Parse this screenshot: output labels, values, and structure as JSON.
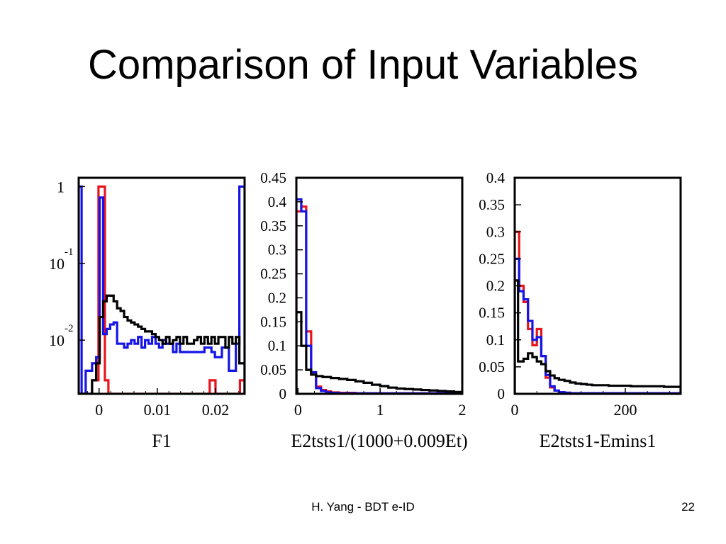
{
  "slide": {
    "title": "Comparison of Input Variables",
    "footer": "H. Yang - BDT e-ID",
    "page_number": "22"
  },
  "series_colors": [
    "#e8141c",
    "#1414e6",
    "#000000"
  ],
  "chart_data": [
    {
      "type": "histogram",
      "xlabel": "F1",
      "xlim": [
        -0.0035,
        0.025
      ],
      "xticks": [
        0,
        0.01,
        0.02
      ],
      "xtick_labels": [
        "0",
        "0.01",
        "0.02"
      ],
      "yscale": "log",
      "ylim": [
        0.002,
        1.3
      ],
      "yticks": [
        {
          "value": 1,
          "base": "1",
          "exp": ""
        },
        {
          "value": 0.1,
          "base": "10",
          "exp": "-1"
        },
        {
          "value": 0.01,
          "base": "10",
          "exp": "-2"
        }
      ],
      "series": [
        {
          "color": "#e8141c",
          "edges": [
            -0.0035,
            -0.0023,
            -0.0012,
            -0.0001,
            0.001,
            0.0016,
            0.0025,
            0.019,
            0.02,
            0.0242,
            0.025
          ],
          "values": [
            0.002,
            0.002,
            0.003,
            1.0,
            0.003,
            0.002,
            0.002,
            0.003,
            0.002,
            0.003
          ]
        },
        {
          "color": "#1414e6",
          "edges": [
            -0.0035,
            -0.003,
            -0.0023,
            -0.0017,
            -0.0012,
            -0.0005,
            0.0001,
            0.0007,
            0.0013,
            0.0019,
            0.0025,
            0.0031,
            0.0037,
            0.0043,
            0.0049,
            0.0055,
            0.0061,
            0.0067,
            0.0073,
            0.0079,
            0.0085,
            0.0091,
            0.0097,
            0.0103,
            0.0109,
            0.0115,
            0.0121,
            0.0127,
            0.0133,
            0.0139,
            0.0145,
            0.0151,
            0.0157,
            0.0163,
            0.0169,
            0.0175,
            0.0181,
            0.0187,
            0.0193,
            0.0199,
            0.0205,
            0.0211,
            0.0217,
            0.0223,
            0.0229,
            0.0235,
            0.0241,
            0.025
          ],
          "values": [
            1.0,
            0.002,
            0.004,
            0.004,
            0.005,
            0.006,
            0.72,
            0.012,
            0.014,
            0.016,
            0.017,
            0.009,
            0.009,
            0.008,
            0.009,
            0.01,
            0.009,
            0.011,
            0.008,
            0.01,
            0.009,
            0.011,
            0.009,
            0.008,
            0.01,
            0.009,
            0.009,
            0.007,
            0.009,
            0.007,
            0.007,
            0.007,
            0.007,
            0.007,
            0.007,
            0.007,
            0.008,
            0.008,
            0.007,
            0.006,
            0.006,
            0.008,
            0.008,
            0.004,
            0.004,
            0.009,
            1.0
          ]
        },
        {
          "color": "#000000",
          "edges": [
            -0.0035,
            -0.0023,
            -0.0012,
            -0.0005,
            0.0001,
            0.0007,
            0.0013,
            0.0019,
            0.0025,
            0.0031,
            0.0037,
            0.0043,
            0.0049,
            0.0055,
            0.0061,
            0.0067,
            0.0073,
            0.0079,
            0.0085,
            0.0091,
            0.0097,
            0.0103,
            0.0109,
            0.0115,
            0.0121,
            0.0127,
            0.0133,
            0.0139,
            0.0145,
            0.0151,
            0.0157,
            0.0163,
            0.0169,
            0.0175,
            0.0181,
            0.0187,
            0.0193,
            0.0199,
            0.0205,
            0.0211,
            0.0217,
            0.0223,
            0.0229,
            0.0235,
            0.0241,
            0.025
          ],
          "values": [
            0.002,
            0.002,
            0.003,
            0.005,
            0.02,
            0.032,
            0.038,
            0.038,
            0.032,
            0.026,
            0.024,
            0.02,
            0.018,
            0.017,
            0.016,
            0.015,
            0.014,
            0.013,
            0.013,
            0.012,
            0.011,
            0.01,
            0.009,
            0.011,
            0.009,
            0.01,
            0.011,
            0.009,
            0.011,
            0.009,
            0.009,
            0.01,
            0.011,
            0.009,
            0.011,
            0.009,
            0.011,
            0.009,
            0.011,
            0.011,
            0.008,
            0.011,
            0.009,
            0.011,
            0.005
          ]
        }
      ]
    },
    {
      "type": "histogram",
      "xlabel": "E2tsts1/(1000+0.009Et)",
      "xlim": [
        -0.02,
        2.0
      ],
      "xticks": [
        0,
        1,
        2
      ],
      "xtick_labels": [
        "0",
        "1",
        "2"
      ],
      "yscale": "linear",
      "ylim": [
        0,
        0.45
      ],
      "yticks": [
        0,
        0.05,
        0.1,
        0.15,
        0.2,
        0.25,
        0.3,
        0.35,
        0.4,
        0.45
      ],
      "ytick_labels": [
        "0",
        "0.05",
        "0.1",
        "0.15",
        "0.2",
        "0.25",
        "0.3",
        "0.35",
        "0.4",
        "0.45"
      ],
      "series": [
        {
          "color": "#e8141c",
          "edges": [
            -0.02,
            0.04,
            0.1,
            0.16,
            0.22,
            0.28,
            0.34,
            0.4,
            0.5,
            0.7,
            1.0,
            2.0
          ],
          "values": [
            0.38,
            0.39,
            0.13,
            0.04,
            0.015,
            0.008,
            0.005,
            0.003,
            0.002,
            0.001,
            0.001
          ]
        },
        {
          "color": "#1414e6",
          "edges": [
            -0.02,
            0.04,
            0.1,
            0.16,
            0.22,
            0.28,
            0.34,
            0.4,
            0.5,
            0.7,
            1.0,
            2.0
          ],
          "values": [
            0.405,
            0.38,
            0.1,
            0.045,
            0.012,
            0.006,
            0.003,
            0.002,
            0.001,
            0.001,
            0.001
          ]
        },
        {
          "color": "#000000",
          "edges": [
            -0.02,
            0.04,
            0.1,
            0.16,
            0.22,
            0.3,
            0.4,
            0.5,
            0.6,
            0.7,
            0.8,
            0.9,
            1.0,
            1.1,
            1.2,
            1.3,
            1.4,
            1.5,
            1.6,
            1.7,
            1.8,
            1.9,
            2.0
          ],
          "values": [
            0.17,
            0.1,
            0.05,
            0.04,
            0.037,
            0.035,
            0.033,
            0.031,
            0.029,
            0.026,
            0.023,
            0.019,
            0.016,
            0.013,
            0.011,
            0.01,
            0.009,
            0.008,
            0.007,
            0.006,
            0.005,
            0.004
          ]
        }
      ]
    },
    {
      "type": "histogram",
      "xlabel": "E2tsts1-Emins1",
      "xlim": [
        0,
        300
      ],
      "xticks": [
        0,
        200
      ],
      "xtick_labels": [
        "0",
        "200"
      ],
      "yscale": "linear",
      "ylim": [
        0,
        0.4
      ],
      "yticks": [
        0,
        0.05,
        0.1,
        0.15,
        0.2,
        0.25,
        0.3,
        0.35,
        0.4
      ],
      "ytick_labels": [
        "0",
        "0.05",
        "0.1",
        "0.15",
        "0.2",
        "0.25",
        "0.3",
        "0.35",
        "0.4"
      ],
      "series": [
        {
          "color": "#e8141c",
          "edges": [
            0,
            8,
            16,
            24,
            32,
            40,
            48,
            56,
            64,
            72,
            80,
            90,
            100,
            300
          ],
          "values": [
            0.3,
            0.2,
            0.17,
            0.12,
            0.09,
            0.12,
            0.07,
            0.03,
            0.012,
            0.006,
            0.003,
            0.002,
            0.001
          ]
        },
        {
          "color": "#1414e6",
          "edges": [
            0,
            8,
            16,
            24,
            32,
            40,
            48,
            56,
            64,
            72,
            80,
            90,
            100,
            300
          ],
          "values": [
            0.25,
            0.19,
            0.175,
            0.135,
            0.1,
            0.105,
            0.07,
            0.035,
            0.014,
            0.006,
            0.003,
            0.002,
            0.001
          ]
        },
        {
          "color": "#000000",
          "edges": [
            0,
            6,
            16,
            24,
            32,
            40,
            48,
            56,
            64,
            72,
            80,
            90,
            100,
            110,
            120,
            130,
            140,
            150,
            170,
            190,
            210,
            230,
            250,
            270,
            290,
            300
          ],
          "values": [
            0.21,
            0.06,
            0.065,
            0.075,
            0.068,
            0.06,
            0.055,
            0.042,
            0.034,
            0.029,
            0.026,
            0.024,
            0.021,
            0.019,
            0.018,
            0.017,
            0.016,
            0.016,
            0.015,
            0.015,
            0.014,
            0.014,
            0.014,
            0.013,
            0.013
          ]
        }
      ]
    }
  ]
}
